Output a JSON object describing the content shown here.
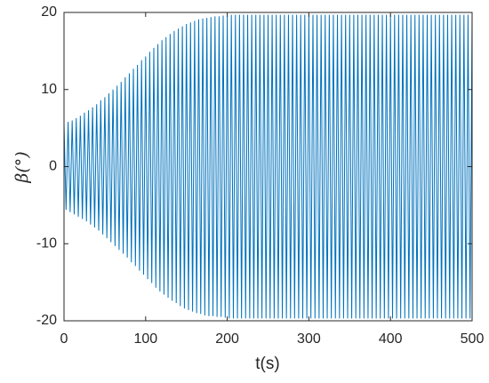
{
  "chart_data": {
    "type": "line",
    "xlabel": "t(s)",
    "ylabel": "β(°)",
    "xlim": [
      0,
      500
    ],
    "xticks": [
      0,
      100,
      200,
      300,
      400,
      500
    ],
    "ylim": [
      -20,
      20
    ],
    "yticks": [
      -20,
      -10,
      0,
      10,
      20
    ],
    "x": [
      0,
      2.5,
      5,
      7.5,
      10,
      12.5,
      15,
      17.5,
      20,
      22.5,
      25,
      27.5,
      30,
      32.5,
      35,
      37.5,
      40,
      42.5,
      45,
      47.5,
      50,
      52.5,
      55,
      57.5,
      60,
      62.5,
      65,
      67.5,
      70,
      72.5,
      75,
      77.5,
      80,
      82.5,
      85,
      87.5,
      90,
      92.5,
      95,
      97.5,
      100,
      102.5,
      105,
      107.5,
      110,
      112.5,
      115,
      117.5,
      120,
      122.5,
      125,
      127.5,
      130,
      132.5,
      135,
      137.5,
      140,
      142.5,
      145,
      147.5,
      150,
      152.5,
      155,
      157.5,
      160,
      162.5,
      165,
      167.5,
      170,
      172.5,
      175,
      177.5,
      180,
      182.5,
      185,
      187.5,
      190,
      192.5,
      195,
      197.5,
      200,
      202.5,
      205,
      207.5,
      210,
      212.5,
      215,
      217.5,
      220,
      222.5,
      225,
      227.5,
      230,
      232.5,
      235,
      237.5,
      240,
      242.5,
      245,
      247.5,
      250,
      252.5,
      255,
      257.5,
      260,
      262.5,
      265,
      267.5,
      270,
      272.5,
      275,
      277.5,
      280,
      282.5,
      285,
      287.5,
      290,
      292.5,
      295,
      297.5,
      300,
      302.5,
      305,
      307.5,
      310,
      312.5,
      315,
      317.5,
      320,
      322.5,
      325,
      327.5,
      330,
      332.5,
      335,
      337.5,
      340,
      342.5,
      345,
      347.5,
      350,
      352.5,
      355,
      357.5,
      360,
      362.5,
      365,
      367.5,
      370,
      372.5,
      375,
      377.5,
      380,
      382.5,
      385,
      387.5,
      390,
      392.5,
      395,
      397.5,
      400,
      402.5,
      405,
      407.5,
      410,
      412.5,
      415,
      417.5,
      420,
      422.5,
      425,
      427.5,
      430,
      432.5,
      435,
      437.5,
      440,
      442.5,
      445,
      447.5,
      450,
      452.5,
      455,
      457.5,
      460,
      462.5,
      465,
      467.5,
      470,
      472.5,
      475,
      477.5,
      480,
      482.5,
      485,
      487.5,
      490,
      492.5,
      495,
      497.5,
      500
    ],
    "series": [
      {
        "color": "#0072bd",
        "values": [
          5.5,
          -5.6,
          5.8,
          -5.9,
          6.0,
          -6.2,
          6.3,
          -6.5,
          6.6,
          -6.8,
          7.0,
          -7.1,
          7.3,
          -7.5,
          7.7,
          -7.9,
          8.1,
          -8.3,
          8.6,
          -8.8,
          9.0,
          -9.3,
          9.5,
          -9.8,
          10.0,
          -10.3,
          10.5,
          -10.8,
          11.0,
          -11.3,
          11.6,
          -11.8,
          12.1,
          -12.4,
          12.7,
          -12.9,
          13.2,
          -13.5,
          13.8,
          -14.0,
          14.3,
          -14.6,
          14.9,
          -15.1,
          15.4,
          -15.7,
          15.9,
          -16.2,
          16.4,
          -16.6,
          16.8,
          -17.0,
          17.2,
          -17.4,
          17.6,
          -17.7,
          17.9,
          -18.1,
          18.2,
          -18.4,
          18.5,
          -18.6,
          18.7,
          -18.8,
          18.9,
          -19.0,
          19.1,
          -19.1,
          19.2,
          -19.3,
          19.3,
          -19.4,
          19.4,
          -19.4,
          19.5,
          -19.5,
          19.5,
          -19.5,
          19.6,
          -19.6,
          19.6,
          -19.7,
          19.7,
          -19.7,
          19.7,
          -19.7,
          19.7,
          -19.7,
          19.7,
          -19.7,
          19.7,
          -19.7,
          19.7,
          -19.7,
          19.7,
          -19.7,
          19.7,
          -19.7,
          19.7,
          -19.7,
          19.7,
          -19.7,
          19.7,
          -19.7,
          19.7,
          -19.7,
          19.7,
          -19.7,
          19.7,
          -19.7,
          19.7,
          -19.7,
          19.7,
          -19.7,
          19.7,
          -19.7,
          19.7,
          -19.7,
          19.7,
          -19.7,
          19.7,
          -19.7,
          19.7,
          -19.7,
          19.7,
          -19.7,
          19.7,
          -19.7,
          19.7,
          -19.7,
          19.7,
          -19.7,
          19.7,
          -19.7,
          19.7,
          -19.7,
          19.7,
          -19.7,
          19.7,
          -19.7,
          19.7,
          -19.7,
          19.7,
          -19.7,
          19.7,
          -19.7,
          19.7,
          -19.7,
          19.7,
          -19.7,
          19.7,
          -19.7,
          19.7,
          -19.7,
          19.7,
          -19.7,
          19.7,
          -19.7,
          19.7,
          -19.7,
          19.7,
          -19.7,
          19.7,
          -19.7,
          19.7,
          -19.7,
          19.7,
          -19.7,
          19.7,
          -19.7,
          19.7,
          -19.7,
          19.7,
          -19.7,
          19.7,
          -19.7,
          19.7,
          -19.7,
          19.7,
          -19.7,
          19.7,
          -19.7,
          19.7,
          -19.7,
          19.7,
          -19.7,
          19.7,
          -19.7,
          19.7,
          -19.7,
          19.7,
          -19.7,
          19.7,
          -19.7,
          19.7,
          -19.7,
          19.7,
          -19.7,
          19.7,
          -19.7,
          19.7
        ]
      }
    ]
  }
}
